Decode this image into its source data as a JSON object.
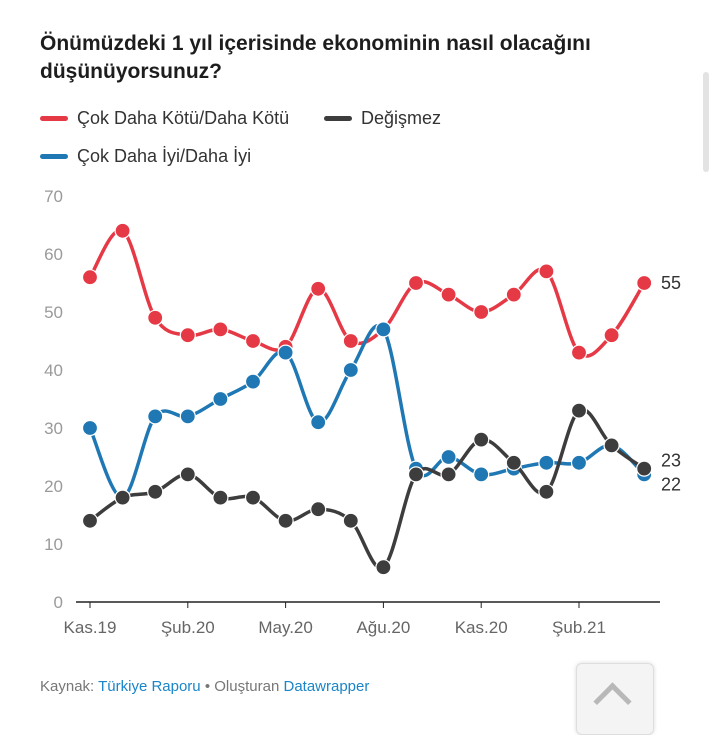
{
  "title": "Önümüzdeki 1 yıl içerisinde ekonominin nasıl olacağını düşünüyorsunuz?",
  "footer": {
    "source_prefix": "Kaynak:",
    "source_link": "Türkiye Raporu",
    "separator": "•",
    "made_with": "Oluşturan",
    "tool_link": "Datawrapper"
  },
  "chart_data": {
    "type": "line",
    "x": [
      "Kas.19",
      "Ara.19",
      "Oca.20",
      "Şub.20",
      "Mar.20",
      "Nis.20",
      "May.20",
      "Haz.20",
      "Tem.20",
      "Ağu.20",
      "Eyl.20",
      "Eki.20",
      "Kas.20",
      "Ara.20",
      "Oca.21",
      "Şub.21",
      "Mar.21",
      "Nis.21"
    ],
    "x_ticks": [
      "Kas.19",
      "Şub.20",
      "May.20",
      "Ağu.20",
      "Kas.20",
      "Şub.21"
    ],
    "y_ticks": [
      0,
      10,
      20,
      30,
      40,
      50,
      60,
      70
    ],
    "ylim": [
      0,
      70
    ],
    "grid": false,
    "legend_placement": "top",
    "series": [
      {
        "name": "Çok Daha Kötü/Daha Kötü",
        "color": "#e63946",
        "end_label": "55",
        "values": [
          56,
          64,
          49,
          46,
          47,
          45,
          44,
          54,
          45,
          47,
          55,
          53,
          50,
          53,
          57,
          43,
          46,
          55
        ]
      },
      {
        "name": "Değişmez",
        "color": "#3d3d3d",
        "end_label": "23",
        "values": [
          14,
          18,
          19,
          22,
          18,
          18,
          14,
          16,
          14,
          6,
          22,
          22,
          28,
          24,
          19,
          33,
          27,
          23
        ]
      },
      {
        "name": "Çok Daha İyi/Daha İyi",
        "color": "#1f78b4",
        "end_label": "22",
        "values": [
          30,
          18,
          32,
          32,
          35,
          38,
          43,
          31,
          40,
          47,
          23,
          25,
          22,
          23,
          24,
          24,
          27,
          22
        ]
      }
    ]
  }
}
